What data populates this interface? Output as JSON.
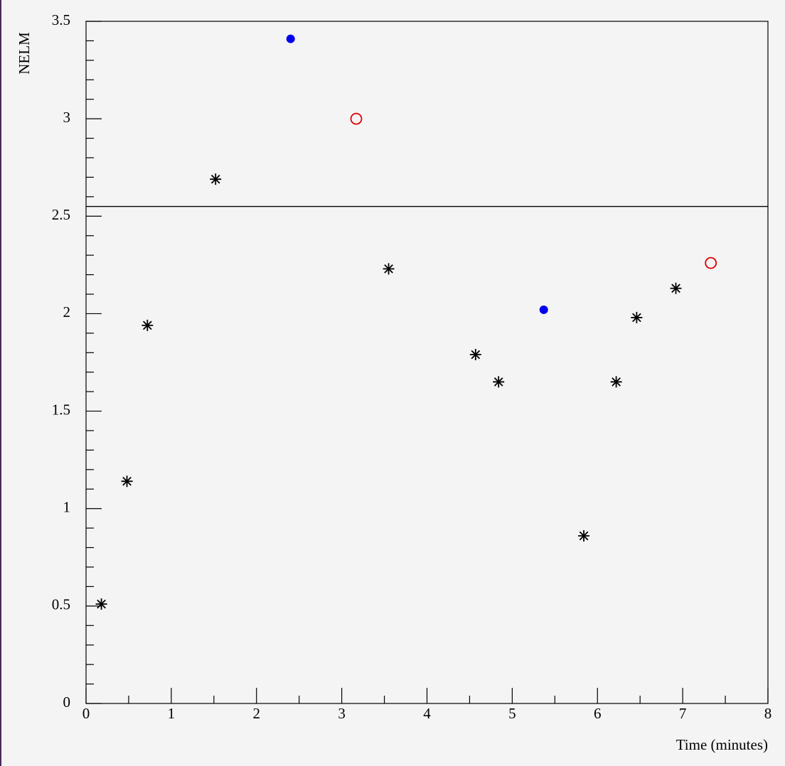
{
  "chart_data": {
    "type": "scatter",
    "x_label": "Time (minutes)",
    "y_label": "NELM",
    "xlim": [
      0,
      8
    ],
    "ylim": [
      0,
      3.5
    ],
    "xticks": [
      0,
      1,
      2,
      3,
      4,
      5,
      6,
      7,
      8
    ],
    "yticks": [
      0,
      0.5,
      1,
      1.5,
      2,
      2.5,
      3,
      3.5
    ],
    "hline": 2.55,
    "series": [
      {
        "marker": "star",
        "color": "#000000",
        "x": [
          0.18,
          0.48,
          0.72,
          1.52,
          3.55,
          4.57,
          4.84,
          5.84,
          6.22,
          6.46,
          6.92
        ],
        "values": [
          0.51,
          1.14,
          1.94,
          2.69,
          2.23,
          1.79,
          1.65,
          0.86,
          1.65,
          1.98,
          2.13
        ]
      },
      {
        "marker": "filled-circle",
        "color": "#0000ee",
        "x": [
          2.4,
          5.37
        ],
        "values": [
          3.41,
          2.02
        ]
      },
      {
        "marker": "open-circle",
        "color": "#dd0000",
        "x": [
          3.17,
          7.33
        ],
        "values": [
          3.0,
          2.26
        ]
      }
    ]
  }
}
